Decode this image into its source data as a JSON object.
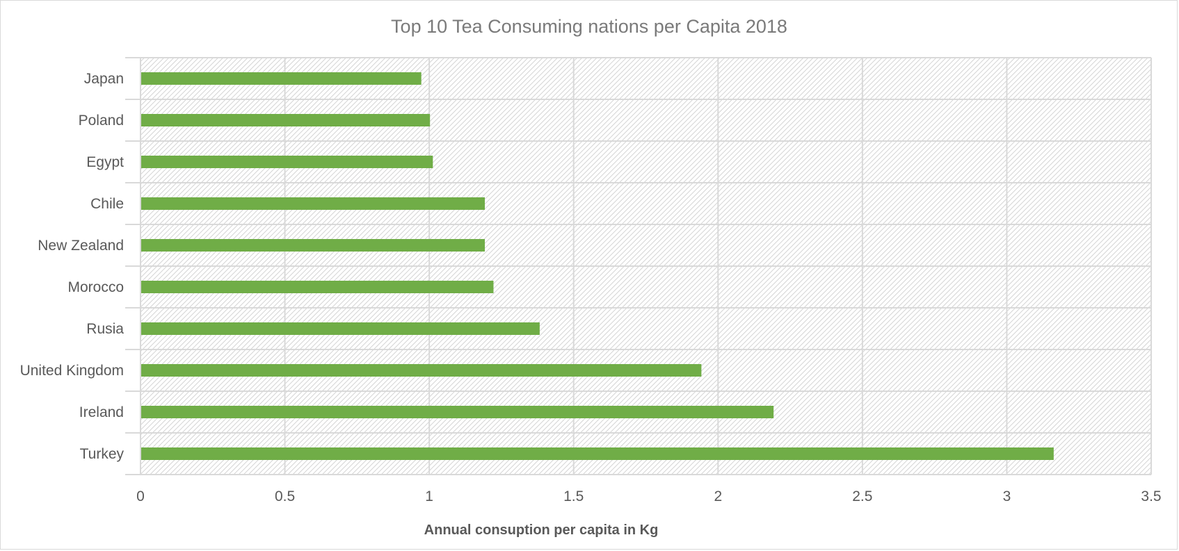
{
  "chart_data": {
    "type": "bar",
    "orientation": "horizontal",
    "title": "Top 10 Tea Consuming nations per Capita 2018",
    "xlabel": "Annual consuption per capita in Kg",
    "ylabel": "",
    "categories": [
      "Japan",
      "Poland",
      "Egypt",
      "Chile",
      "New Zealand",
      "Morocco",
      "Rusia",
      "United Kingdom",
      "Ireland",
      "Turkey"
    ],
    "values": [
      0.97,
      1.0,
      1.01,
      1.19,
      1.19,
      1.22,
      1.38,
      1.94,
      2.19,
      3.16
    ],
    "xlim": [
      0,
      3.5
    ],
    "xticks": [
      "0",
      "0.5",
      "1",
      "1.5",
      "2",
      "2.5",
      "3",
      "3.5"
    ],
    "grid": true,
    "legend": "none",
    "colors": {
      "bar": "#70AD47",
      "grid": "#d9d9d9",
      "hatch": "#d0d0d0"
    }
  }
}
